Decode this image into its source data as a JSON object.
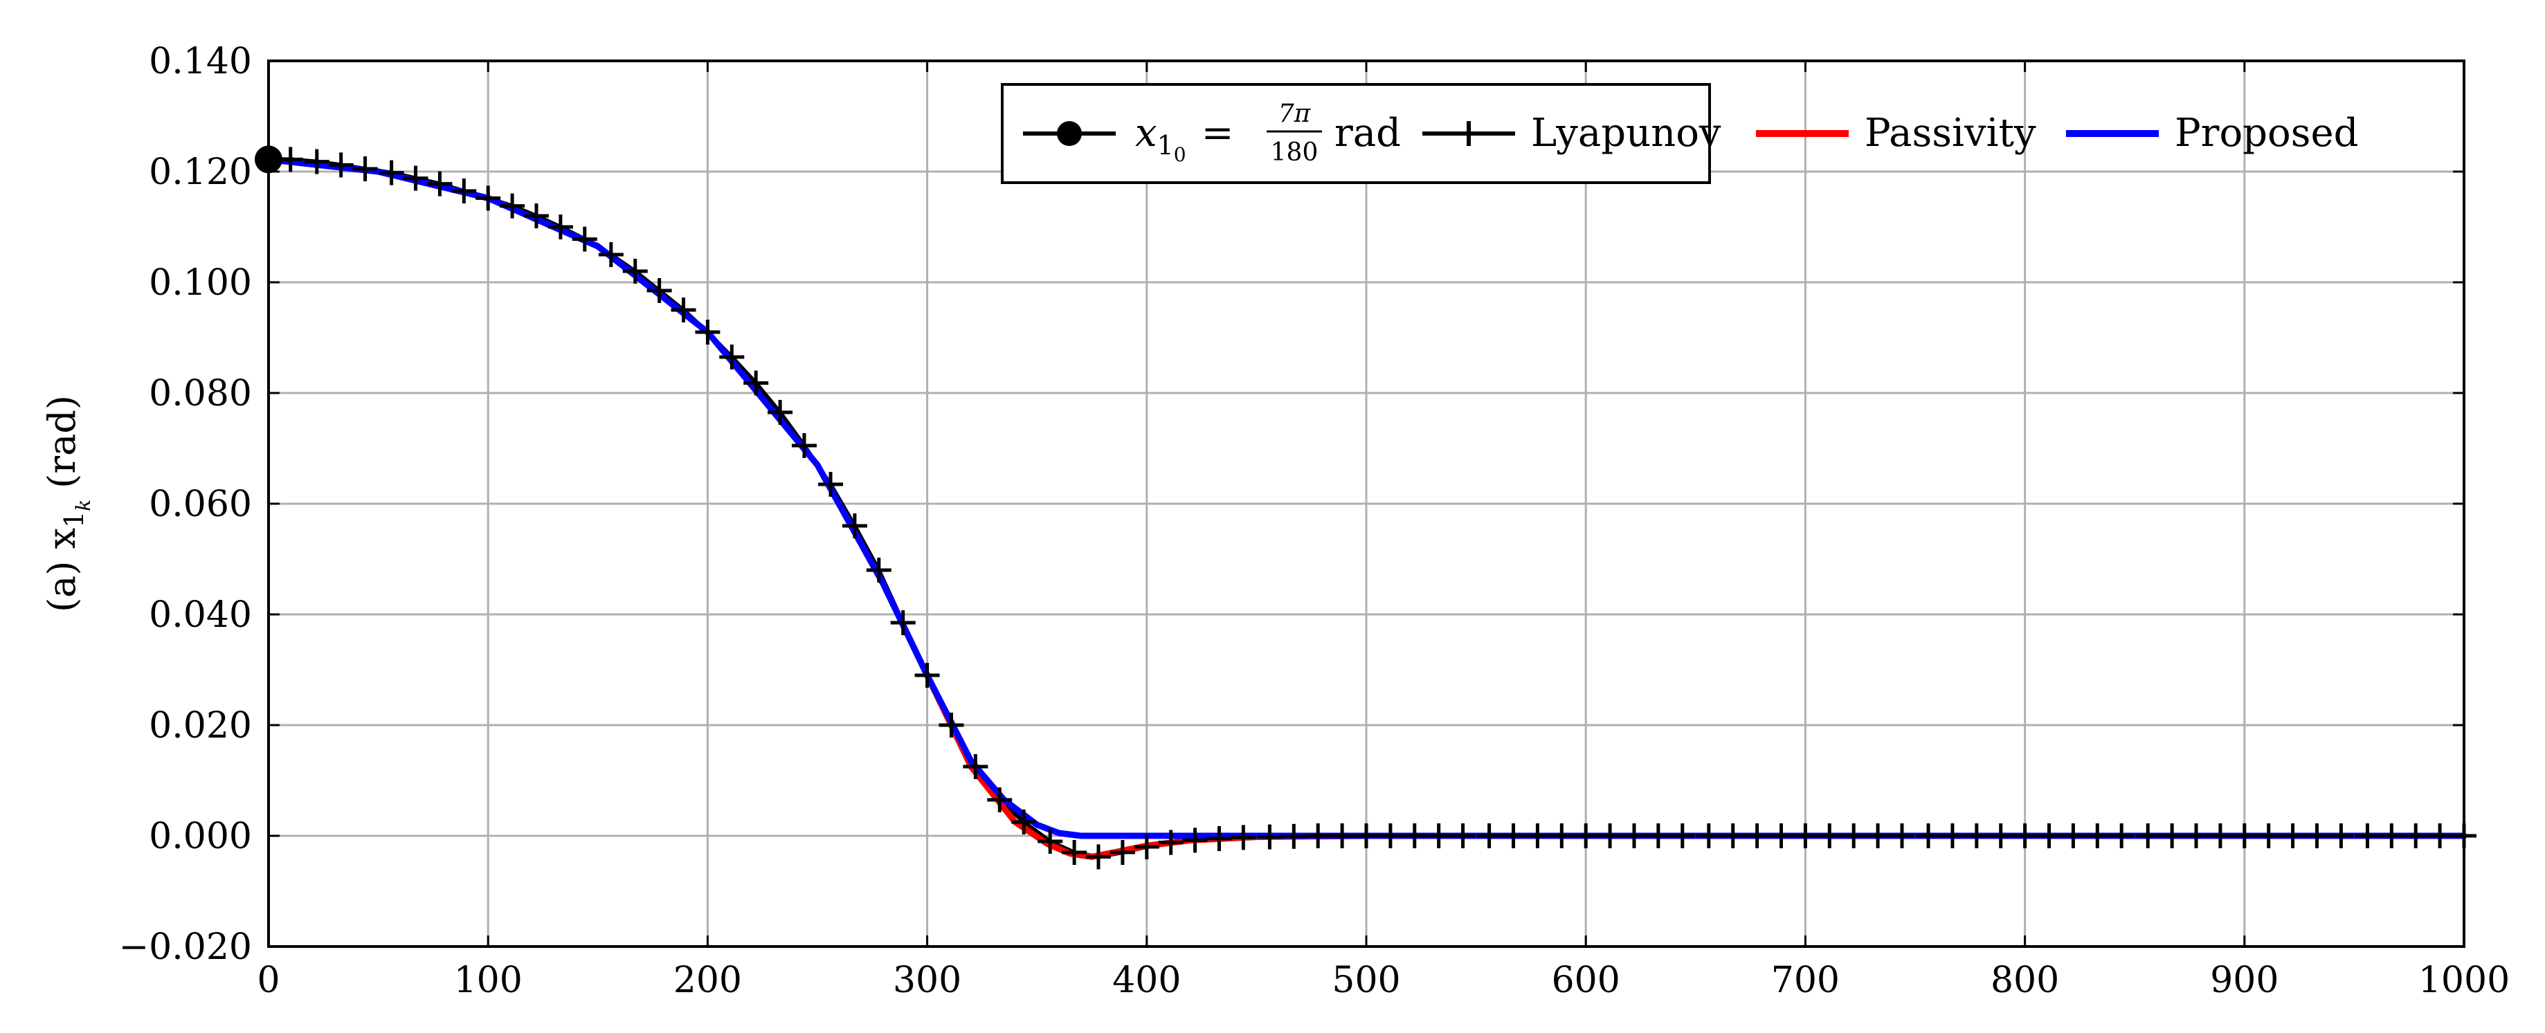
{
  "chart_data": {
    "type": "line",
    "xlim": [
      0,
      1000
    ],
    "ylim": [
      -0.02,
      0.14
    ],
    "grid": true,
    "x_ticks": [
      "0",
      "100",
      "200",
      "300",
      "400",
      "500",
      "600",
      "700",
      "800",
      "900",
      "1000"
    ],
    "x_tick_values": [
      0,
      100,
      200,
      300,
      400,
      500,
      600,
      700,
      800,
      900,
      1000
    ],
    "y_ticks": [
      "−0.020",
      "0.000",
      "0.020",
      "0.040",
      "0.060",
      "0.080",
      "0.100",
      "0.120",
      "0.140"
    ],
    "y_tick_values": [
      -0.02,
      0,
      0.02,
      0.04,
      0.06,
      0.08,
      0.1,
      0.12,
      0.14
    ],
    "ylabel": {
      "prefix": "(a) x",
      "sub1": "1",
      "sub2": "k",
      "suffix": "(rad)"
    },
    "legend": {
      "position": "top-right",
      "initial": {
        "x": "x",
        "sub": "1",
        "sub2": "0",
        "eq": "=",
        "num": "7π",
        "den": "180",
        "unit": "rad"
      },
      "lyapunov": "Lyapunov",
      "passivity": "Passivity",
      "proposed": "Proposed"
    },
    "initial_point": {
      "x": 0,
      "y": 0.1222,
      "color": "#000000"
    },
    "series": [
      {
        "name": "Lyapunov",
        "color": "#000000",
        "marker": "+",
        "x": [
          0,
          10,
          22,
          33,
          44,
          56,
          67,
          78,
          89,
          100,
          111,
          122,
          133,
          144,
          156,
          167,
          178,
          189,
          200,
          211,
          222,
          233,
          244,
          256,
          267,
          278,
          289,
          300,
          311,
          322,
          333,
          344,
          356,
          367,
          378,
          389,
          400,
          411,
          422,
          433,
          444,
          456,
          467,
          478,
          489,
          500,
          511,
          522,
          533,
          544,
          556,
          567,
          578,
          589,
          600,
          611,
          622,
          633,
          644,
          656,
          667,
          678,
          689,
          700,
          711,
          722,
          733,
          744,
          756,
          767,
          778,
          789,
          800,
          811,
          822,
          833,
          844,
          856,
          867,
          878,
          889,
          900,
          911,
          922,
          933,
          944,
          956,
          967,
          978,
          989,
          1000
        ],
        "y": [
          0.1222,
          0.1222,
          0.1218,
          0.1212,
          0.1205,
          0.1198,
          0.1188,
          0.1178,
          0.1165,
          0.1152,
          0.1138,
          0.112,
          0.11,
          0.1078,
          0.105,
          0.102,
          0.0985,
          0.095,
          0.091,
          0.0865,
          0.0818,
          0.0765,
          0.0705,
          0.0635,
          0.056,
          0.048,
          0.0385,
          0.029,
          0.02,
          0.0125,
          0.0065,
          0.0025,
          -0.001,
          -0.003,
          -0.0038,
          -0.003,
          -0.002,
          -0.0012,
          -0.0008,
          -0.0005,
          -0.0003,
          -0.0002,
          -0.0001,
          0.0,
          0.0,
          0.0,
          0.0,
          0.0,
          0.0,
          0.0,
          0.0,
          0.0,
          0.0,
          0.0,
          0.0,
          0.0,
          0.0,
          0.0,
          0.0,
          0.0,
          0.0,
          0.0,
          0.0,
          0.0,
          0.0,
          0.0,
          0.0,
          0.0,
          0.0,
          0.0,
          0.0,
          0.0,
          0.0,
          0.0,
          0.0,
          0.0,
          0.0,
          0.0,
          0.0,
          0.0,
          0.0,
          0.0,
          0.0,
          0.0,
          0.0,
          0.0,
          0.0,
          0.0,
          0.0,
          0.0,
          0.0
        ]
      },
      {
        "name": "Passivity",
        "color": "#ff0000",
        "marker": "none",
        "x": [
          0,
          50,
          100,
          150,
          200,
          250,
          280,
          300,
          320,
          340,
          355,
          365,
          375,
          385,
          400,
          420,
          450,
          500,
          1000
        ],
        "y": [
          0.1222,
          0.12,
          0.1152,
          0.1065,
          0.091,
          0.067,
          0.0455,
          0.029,
          0.0125,
          0.0025,
          -0.0015,
          -0.0032,
          -0.0038,
          -0.003,
          -0.0018,
          -0.0008,
          -0.0002,
          0.0,
          0.0
        ]
      },
      {
        "name": "Proposed",
        "color": "#0000ff",
        "marker": "none",
        "x": [
          0,
          50,
          100,
          150,
          200,
          250,
          280,
          300,
          320,
          335,
          350,
          360,
          370,
          380,
          400,
          1000
        ],
        "y": [
          0.1222,
          0.12,
          0.1152,
          0.1065,
          0.091,
          0.067,
          0.0455,
          0.029,
          0.0135,
          0.0065,
          0.002,
          0.0005,
          0.0,
          0.0,
          0.0,
          0.0
        ]
      }
    ]
  }
}
